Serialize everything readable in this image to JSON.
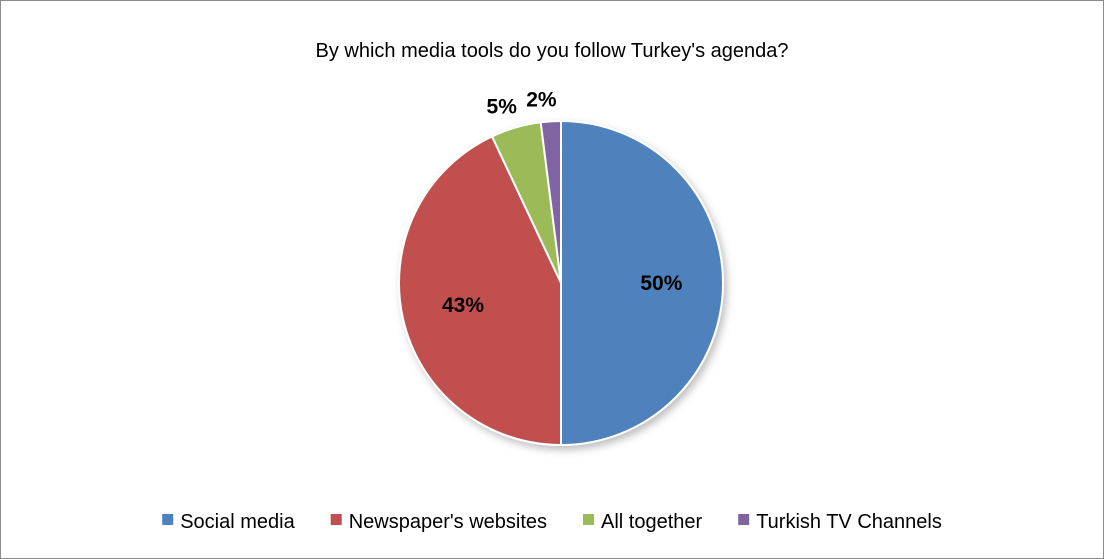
{
  "chart_data": {
    "type": "pie",
    "title": "By which media tools do you follow Turkey's agenda?",
    "slices": [
      {
        "name": "Social media",
        "value": 50,
        "label": "50%",
        "color": "#4f81bd"
      },
      {
        "name": "Newspaper's websites",
        "value": 43,
        "label": "43%",
        "color": "#c0504d"
      },
      {
        "name": "All together",
        "value": 5,
        "label": "5%",
        "color": "#9bbb59"
      },
      {
        "name": "Turkish TV Channels",
        "value": 2,
        "label": "2%",
        "color": "#8064a2"
      }
    ],
    "legend_position": "bottom"
  }
}
